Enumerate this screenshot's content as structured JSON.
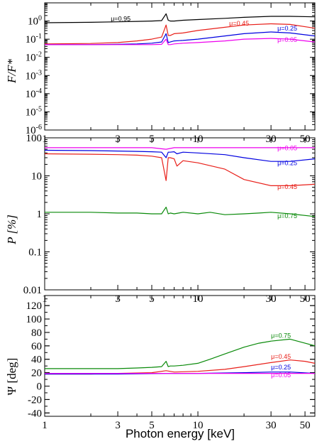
{
  "chart_data": [
    {
      "type": "line",
      "ylabel": "F/F*",
      "yscale": "log",
      "xscale": "log",
      "xlim": [
        1,
        58
      ],
      "ylim": [
        1e-06,
        10
      ],
      "yticks": [
        {
          "value": 1,
          "base": "10",
          "exp": "0"
        },
        {
          "value": 0.1,
          "base": "10",
          "exp": "-1"
        },
        {
          "value": 0.01,
          "base": "10",
          "exp": "-2"
        },
        {
          "value": 0.001,
          "base": "10",
          "exp": "-3"
        },
        {
          "value": 0.0001,
          "base": "10",
          "exp": "-4"
        },
        {
          "value": 1e-05,
          "base": "10",
          "exp": "-5"
        },
        {
          "value": 1e-06,
          "base": "10",
          "exp": "-6"
        }
      ],
      "xticks": [
        {
          "value": 1,
          "label": "1"
        },
        {
          "value": 3,
          "label": "3"
        },
        {
          "value": 5,
          "label": "5"
        },
        {
          "value": 10,
          "label": "10"
        },
        {
          "value": 30,
          "label": "30"
        },
        {
          "value": 50,
          "label": "50"
        }
      ],
      "series": [
        {
          "name": "μ=0.95",
          "color": "#000000",
          "label_at": [
            2.7,
            1.0
          ],
          "x": [
            1,
            2,
            3,
            4,
            5,
            5.8,
            6.2,
            6.4,
            6.6,
            7.0,
            8,
            10,
            15,
            20,
            30,
            40,
            58
          ],
          "y": [
            0.8,
            0.85,
            0.9,
            0.95,
            1.0,
            1.05,
            2.5,
            1.1,
            1.0,
            1.0,
            1.1,
            1.2,
            1.4,
            1.6,
            1.8,
            1.8,
            1.7
          ]
        },
        {
          "name": "μ=0.45",
          "color": "#e8201a",
          "label_at": [
            16,
            0.55
          ],
          "x": [
            1,
            2,
            3,
            4,
            5,
            5.8,
            6.2,
            6.4,
            6.6,
            7.0,
            8,
            10,
            15,
            20,
            30,
            40,
            58
          ],
          "y": [
            0.055,
            0.058,
            0.065,
            0.08,
            0.1,
            0.13,
            0.6,
            0.16,
            0.16,
            0.2,
            0.22,
            0.3,
            0.45,
            0.6,
            0.7,
            0.65,
            0.4
          ]
        },
        {
          "name": "μ=0.25",
          "color": "#0000e0",
          "label_at": [
            33,
            0.3
          ],
          "x": [
            1,
            2,
            3,
            4,
            5,
            5.8,
            6.2,
            6.4,
            6.6,
            7.0,
            8,
            10,
            15,
            20,
            30,
            40,
            58
          ],
          "y": [
            0.05,
            0.05,
            0.052,
            0.055,
            0.06,
            0.07,
            0.2,
            0.065,
            0.07,
            0.08,
            0.085,
            0.1,
            0.15,
            0.2,
            0.25,
            0.22,
            0.15
          ]
        },
        {
          "name": "μ=0.05",
          "color": "#ee00ee",
          "label_at": [
            33,
            0.07
          ],
          "x": [
            1,
            2,
            3,
            4,
            5,
            5.8,
            6.2,
            6.4,
            6.6,
            7.0,
            8,
            10,
            15,
            20,
            30,
            40,
            58
          ],
          "y": [
            0.05,
            0.05,
            0.05,
            0.05,
            0.05,
            0.052,
            0.1,
            0.05,
            0.05,
            0.055,
            0.06,
            0.065,
            0.08,
            0.1,
            0.11,
            0.1,
            0.07
          ]
        }
      ]
    },
    {
      "type": "line",
      "ylabel": "P [%]",
      "yscale": "log",
      "xscale": "log",
      "xlim": [
        1,
        58
      ],
      "ylim": [
        0.01,
        100
      ],
      "yticks": [
        {
          "value": 100,
          "label": "100"
        },
        {
          "value": 10,
          "label": "10"
        },
        {
          "value": 1,
          "label": "1"
        },
        {
          "value": 0.1,
          "label": "0.1"
        },
        {
          "value": 0.01,
          "label": "0.01"
        }
      ],
      "xticks": [
        {
          "value": 1,
          "label": "1"
        },
        {
          "value": 3,
          "label": "3"
        },
        {
          "value": 5,
          "label": "5"
        },
        {
          "value": 10,
          "label": "10"
        },
        {
          "value": 30,
          "label": "30"
        },
        {
          "value": 50,
          "label": "50"
        }
      ],
      "series": [
        {
          "name": "μ=0.05",
          "color": "#ee00ee",
          "label_at": [
            33,
            47
          ],
          "x": [
            1,
            2,
            3,
            5,
            6.2,
            7,
            10,
            20,
            30,
            58
          ],
          "y": [
            55,
            55,
            55,
            55,
            50,
            55,
            55,
            55,
            55,
            55
          ]
        },
        {
          "name": "μ=0.25",
          "color": "#0000e0",
          "label_at": [
            33,
            19
          ],
          "x": [
            1,
            2,
            3,
            4,
            5,
            5.8,
            6.2,
            6.4,
            6.6,
            7.0,
            7.3,
            8,
            10,
            15,
            20,
            30,
            40,
            58
          ],
          "y": [
            47,
            46,
            45,
            44,
            43,
            42,
            30,
            42,
            42,
            43,
            38,
            42,
            40,
            36,
            30,
            24,
            24,
            28
          ]
        },
        {
          "name": "μ=0.45",
          "color": "#e8201a",
          "label_at": [
            33,
            4.5
          ],
          "x": [
            1,
            2,
            3,
            4,
            5,
            5.8,
            6.2,
            6.4,
            6.6,
            7.0,
            7.3,
            8,
            10,
            15,
            20,
            30,
            40,
            58
          ],
          "y": [
            38,
            37,
            36,
            35,
            33,
            30,
            7.5,
            30,
            30,
            28,
            18,
            25,
            22,
            15,
            8,
            5.5,
            5.5,
            6
          ]
        },
        {
          "name": "μ=0.75",
          "color": "#0a8a0a",
          "label_at": [
            33,
            0.78
          ],
          "x": [
            1,
            2,
            3,
            4,
            5,
            5.8,
            6.2,
            6.4,
            6.6,
            7.0,
            8,
            10,
            12,
            15,
            20,
            25,
            30,
            40,
            58
          ],
          "y": [
            1.1,
            1.1,
            1.05,
            1.05,
            1.0,
            1.0,
            1.5,
            1.0,
            1.05,
            1.0,
            1.1,
            1.0,
            1.1,
            0.95,
            1.0,
            1.05,
            1.1,
            1.0,
            0.85
          ]
        }
      ]
    },
    {
      "type": "line",
      "ylabel": "Ψ [deg]",
      "xlabel": "Photon energy [keV]",
      "yscale": "linear",
      "xscale": "log",
      "xlim": [
        1,
        58
      ],
      "ylim": [
        -45,
        135
      ],
      "yticks": [
        {
          "value": 120,
          "label": "120"
        },
        {
          "value": 100,
          "label": "100"
        },
        {
          "value": 80,
          "label": "80"
        },
        {
          "value": 60,
          "label": "60"
        },
        {
          "value": 40,
          "label": "40"
        },
        {
          "value": 20,
          "label": "20"
        },
        {
          "value": 0,
          "label": "0"
        },
        {
          "value": -20,
          "label": "-20"
        },
        {
          "value": -40,
          "label": "-40"
        }
      ],
      "xticks": [
        {
          "value": 1,
          "label": "1"
        },
        {
          "value": 3,
          "label": "3"
        },
        {
          "value": 5,
          "label": "5"
        },
        {
          "value": 10,
          "label": "10"
        },
        {
          "value": 30,
          "label": "30"
        },
        {
          "value": 50,
          "label": "50"
        }
      ],
      "series": [
        {
          "name": "μ=0.75",
          "color": "#0a8a0a",
          "label_at": [
            30,
            72
          ],
          "x": [
            1,
            2,
            3,
            4,
            5,
            5.8,
            6.2,
            6.4,
            6.6,
            7.0,
            8,
            10,
            12,
            15,
            20,
            25,
            30,
            40,
            50,
            58
          ],
          "y": [
            26,
            26,
            26,
            27,
            28,
            29,
            37,
            29,
            30,
            30,
            31,
            34,
            40,
            48,
            58,
            64,
            67,
            70,
            64,
            60
          ]
        },
        {
          "name": "μ=0.45",
          "color": "#e8201a",
          "label_at": [
            30,
            41
          ],
          "x": [
            1,
            2,
            3,
            5,
            6.2,
            7,
            10,
            15,
            20,
            30,
            40,
            50,
            58
          ],
          "y": [
            18,
            18,
            19,
            20,
            23,
            21,
            22,
            25,
            29,
            35,
            39,
            37,
            34
          ]
        },
        {
          "name": "μ=0.25",
          "color": "#0000e0",
          "label_at": [
            30,
            25
          ],
          "x": [
            1,
            3,
            6.2,
            10,
            20,
            30,
            40,
            58
          ],
          "y": [
            18,
            18,
            19,
            19,
            20,
            21,
            21,
            19
          ]
        },
        {
          "name": "μ=0.05",
          "color": "#ee00ee",
          "label_at": [
            30,
            13
          ],
          "x": [
            1,
            3,
            6.2,
            10,
            20,
            30,
            40,
            58
          ],
          "y": [
            19,
            19,
            19,
            19,
            19,
            19,
            19,
            19
          ]
        }
      ]
    }
  ]
}
